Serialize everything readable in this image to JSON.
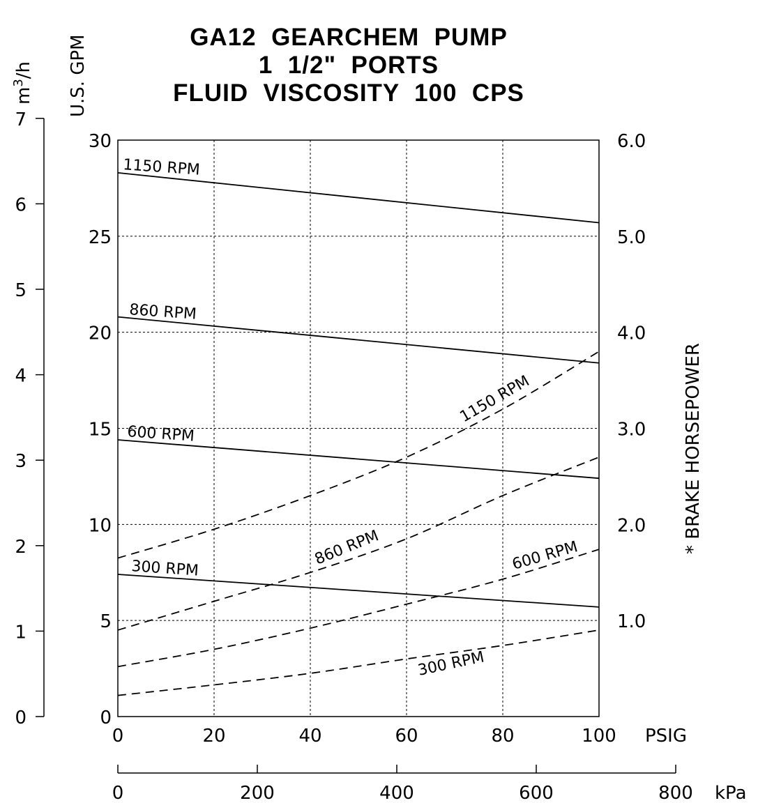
{
  "chart_data": {
    "type": "line",
    "title_lines": [
      "GA12  GEARCHEM  PUMP",
      "1  1/2\"  PORTS",
      "FLUID  VISCOSITY  100  CPS"
    ],
    "x_axis": {
      "ticks": [
        0,
        20,
        40,
        60,
        80,
        100
      ],
      "tick_labels": [
        "0",
        "20",
        "40",
        "60",
        "80",
        "100"
      ],
      "unit": "PSIG",
      "range": [
        0,
        100
      ]
    },
    "x_axis_secondary": {
      "ticks": [
        0,
        200,
        400,
        600,
        800
      ],
      "tick_labels": [
        "0",
        "200",
        "400",
        "600",
        "800"
      ],
      "unit": "kPa"
    },
    "y_axis_left_inner": {
      "label": "U.S.  GPM",
      "ticks": [
        0,
        5,
        10,
        15,
        20,
        25,
        30
      ],
      "tick_labels": [
        "0",
        "5",
        "10",
        "15",
        "20",
        "25",
        "30"
      ],
      "range": [
        0,
        30
      ]
    },
    "y_axis_left_outer": {
      "label": "m3/h",
      "label_base": "m",
      "label_sup": "3",
      "label_tail": "/h",
      "ticks": [
        0,
        1,
        2,
        3,
        4,
        5,
        6,
        7
      ],
      "tick_labels": [
        "0",
        "1",
        "2",
        "3",
        "4",
        "5",
        "6",
        "7"
      ]
    },
    "y_axis_right": {
      "label": "* BRAKE HORSEPOWER",
      "ticks": [
        1,
        2,
        3,
        4,
        5,
        6
      ],
      "tick_labels": [
        "1.0",
        "2.0",
        "3.0",
        "4.0",
        "5.0",
        "6.0"
      ],
      "range": [
        0,
        6
      ]
    },
    "grid": true,
    "series": [
      {
        "name": "1150 RPM",
        "kind": "flow",
        "style": "solid",
        "x": [
          0,
          100
        ],
        "y": [
          28.3,
          25.7
        ]
      },
      {
        "name": "860 RPM",
        "kind": "flow",
        "style": "solid",
        "x": [
          0,
          100
        ],
        "y": [
          20.8,
          18.4
        ]
      },
      {
        "name": "600 RPM",
        "kind": "flow",
        "style": "solid",
        "x": [
          0,
          100
        ],
        "y": [
          14.4,
          12.4
        ]
      },
      {
        "name": "300 RPM",
        "kind": "flow",
        "style": "solid",
        "x": [
          0,
          100
        ],
        "y": [
          7.4,
          5.7
        ]
      },
      {
        "name": "1150 RPM",
        "kind": "horsepower",
        "style": "dashed",
        "x": [
          0,
          20,
          40,
          60,
          80,
          100
        ],
        "y": [
          1.65,
          1.95,
          2.3,
          2.7,
          3.2,
          3.8
        ]
      },
      {
        "name": "860 RPM",
        "kind": "horsepower",
        "style": "dashed",
        "x": [
          0,
          20,
          40,
          60,
          80,
          100
        ],
        "y": [
          0.9,
          1.2,
          1.5,
          1.85,
          2.3,
          2.7
        ]
      },
      {
        "name": "600 RPM",
        "kind": "horsepower",
        "style": "dashed",
        "x": [
          0,
          20,
          40,
          60,
          80,
          100
        ],
        "y": [
          0.52,
          0.7,
          0.92,
          1.17,
          1.43,
          1.74
        ]
      },
      {
        "name": "300 RPM",
        "kind": "horsepower",
        "style": "dashed",
        "x": [
          0,
          20,
          40,
          60,
          80,
          100
        ],
        "y": [
          0.22,
          0.33,
          0.45,
          0.6,
          0.74,
          0.9
        ]
      }
    ]
  }
}
